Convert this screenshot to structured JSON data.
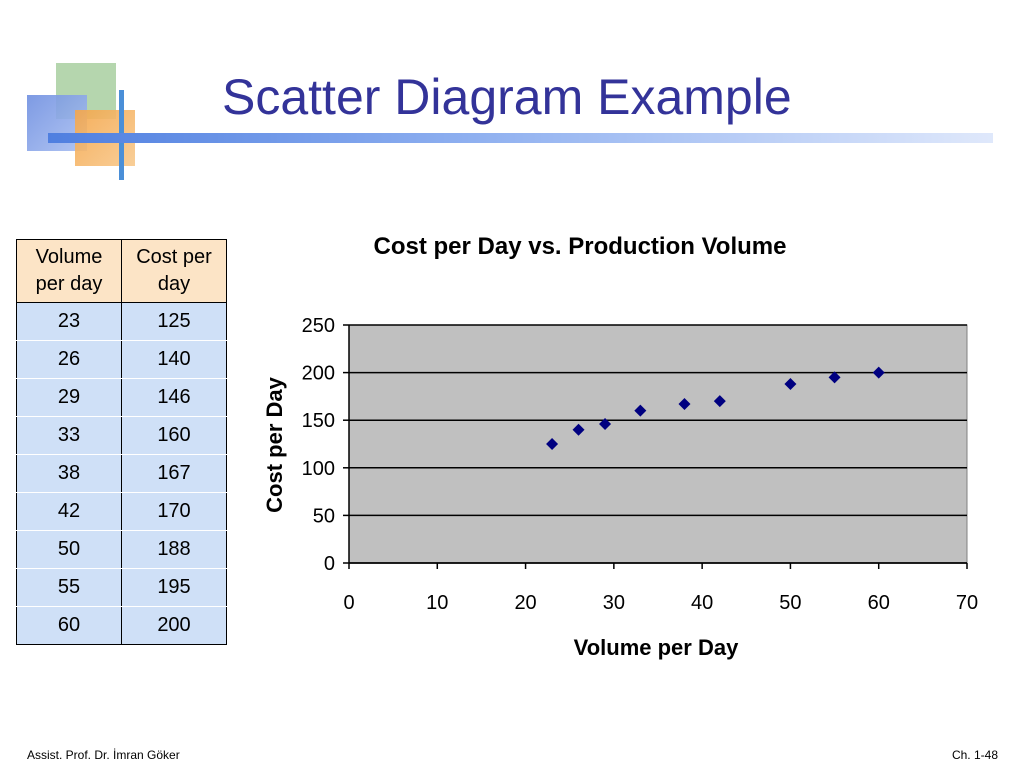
{
  "slide": {
    "title": "Scatter Diagram Example",
    "footer_left": "Assist. Prof. Dr. İmran Göker",
    "footer_right": "Ch. 1-48"
  },
  "table": {
    "headers": [
      "Volume\nper day",
      "Cost per\nday"
    ],
    "rows": [
      [
        "23",
        "125"
      ],
      [
        "26",
        "140"
      ],
      [
        "29",
        "146"
      ],
      [
        "33",
        "160"
      ],
      [
        "38",
        "167"
      ],
      [
        "42",
        "170"
      ],
      [
        "50",
        "188"
      ],
      [
        "55",
        "195"
      ],
      [
        "60",
        "200"
      ]
    ]
  },
  "colors": {
    "title": "#333399",
    "header_fill": "#fce4c6",
    "cell_fill": "#cfe0f7",
    "plot_area": "#c0c0c0",
    "marker": "#000080"
  },
  "chart_data": {
    "type": "scatter",
    "title": "Cost per Day vs. Production Volume",
    "xlabel": "Volume per Day",
    "ylabel": "Cost per Day",
    "xlim": [
      0,
      70
    ],
    "ylim": [
      0,
      250
    ],
    "xticks": [
      0,
      10,
      20,
      30,
      40,
      50,
      60,
      70
    ],
    "yticks": [
      0,
      50,
      100,
      150,
      200,
      250
    ],
    "grid": "horizontal",
    "legend": "none",
    "marker": "diamond",
    "points": [
      {
        "x": 23,
        "y": 125
      },
      {
        "x": 26,
        "y": 140
      },
      {
        "x": 29,
        "y": 146
      },
      {
        "x": 33,
        "y": 160
      },
      {
        "x": 38,
        "y": 167
      },
      {
        "x": 42,
        "y": 170
      },
      {
        "x": 50,
        "y": 188
      },
      {
        "x": 55,
        "y": 195
      },
      {
        "x": 60,
        "y": 200
      }
    ]
  }
}
